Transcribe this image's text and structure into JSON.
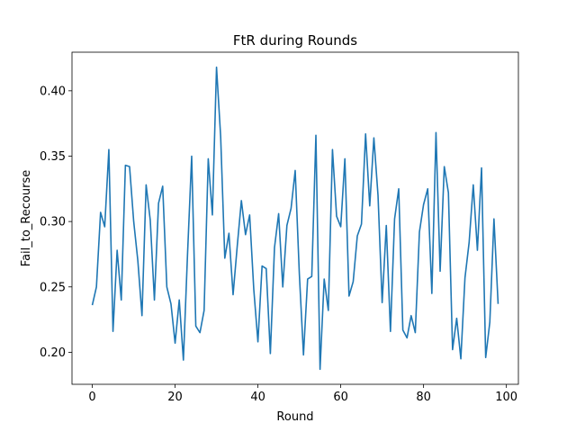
{
  "chart_data": {
    "type": "line",
    "title": "FtR during Rounds",
    "xlabel": "Round",
    "ylabel": "Fail_to_Recourse",
    "xlim": [
      -4.9,
      102.9
    ],
    "ylim": [
      0.1755,
      0.4295
    ],
    "xticks": [
      0,
      20,
      40,
      60,
      80,
      100
    ],
    "xtick_labels": [
      "0",
      "20",
      "40",
      "60",
      "80",
      "100"
    ],
    "yticks": [
      0.2,
      0.25,
      0.3,
      0.35,
      0.4
    ],
    "ytick_labels": [
      "0.20",
      "0.25",
      "0.30",
      "0.35",
      "0.40"
    ],
    "grid": false,
    "color": "#1f77b4",
    "series": [
      {
        "x": [
          0,
          1,
          2,
          3,
          4,
          5,
          6,
          7,
          8,
          9,
          10,
          11,
          12,
          13,
          14,
          15,
          16,
          17,
          18,
          19,
          20,
          21,
          22,
          23,
          24,
          25,
          26,
          27,
          28,
          29,
          30,
          31,
          32,
          33,
          34,
          35,
          36,
          37,
          38,
          39,
          40,
          41,
          42,
          43,
          44,
          45,
          46,
          47,
          48,
          49,
          50,
          51,
          52,
          53,
          54,
          55,
          56,
          57,
          58,
          59,
          60,
          61,
          62,
          63,
          64,
          65,
          66,
          67,
          68,
          69,
          70,
          71,
          72,
          73,
          74,
          75,
          76,
          77,
          78,
          79,
          80,
          81,
          82,
          83,
          84,
          85,
          86,
          87,
          88,
          89,
          90,
          91,
          92,
          93,
          94,
          95,
          96,
          97,
          98
        ],
        "values": [
          0.236,
          0.25,
          0.307,
          0.296,
          0.355,
          0.216,
          0.278,
          0.24,
          0.343,
          0.342,
          0.3,
          0.27,
          0.228,
          0.328,
          0.301,
          0.24,
          0.314,
          0.327,
          0.25,
          0.237,
          0.207,
          0.24,
          0.194,
          0.275,
          0.35,
          0.22,
          0.215,
          0.232,
          0.348,
          0.305,
          0.418,
          0.365,
          0.272,
          0.291,
          0.244,
          0.281,
          0.316,
          0.29,
          0.305,
          0.248,
          0.208,
          0.266,
          0.264,
          0.199,
          0.28,
          0.306,
          0.25,
          0.297,
          0.31,
          0.339,
          0.26,
          0.198,
          0.256,
          0.258,
          0.366,
          0.187,
          0.256,
          0.232,
          0.355,
          0.304,
          0.296,
          0.348,
          0.243,
          0.254,
          0.289,
          0.298,
          0.367,
          0.312,
          0.364,
          0.32,
          0.238,
          0.297,
          0.216,
          0.302,
          0.325,
          0.217,
          0.211,
          0.228,
          0.215,
          0.292,
          0.313,
          0.325,
          0.245,
          0.368,
          0.262,
          0.342,
          0.322,
          0.202,
          0.226,
          0.195,
          0.257,
          0.284,
          0.328,
          0.278,
          0.341,
          0.196,
          0.223,
          0.302,
          0.237
        ]
      }
    ]
  }
}
